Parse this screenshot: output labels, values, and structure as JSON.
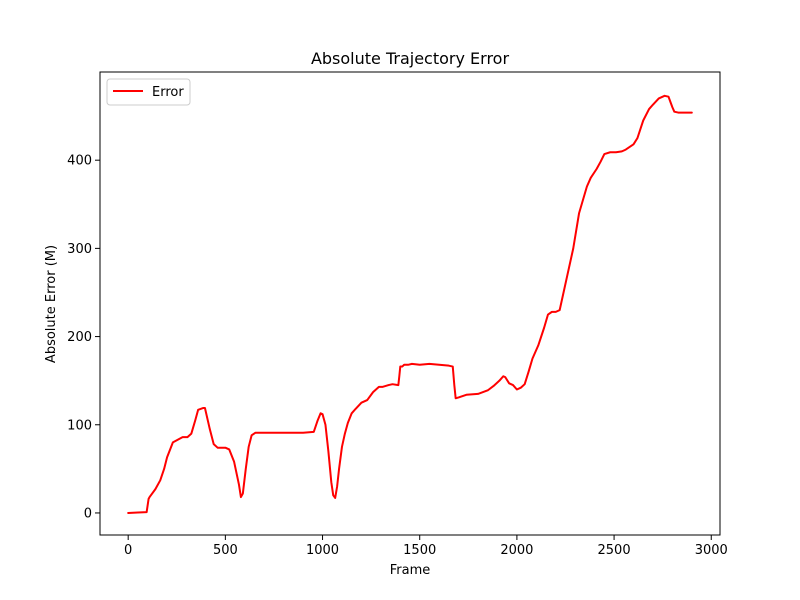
{
  "chart_data": {
    "type": "line",
    "title": "Absolute Trajectory Error",
    "xlabel": "Frame",
    "ylabel": "Absolute Error (M)",
    "xlim": [
      -145,
      3045
    ],
    "ylim": [
      -25,
      500
    ],
    "x_ticks": [
      0,
      500,
      1000,
      1500,
      2000,
      2500,
      3000
    ],
    "y_ticks": [
      0,
      100,
      200,
      300,
      400
    ],
    "x_tick_labels": [
      "0",
      "500",
      "1000",
      "1500",
      "2000",
      "2500",
      "3000"
    ],
    "y_tick_labels": [
      "0",
      "100",
      "200",
      "300",
      "400"
    ],
    "grid": false,
    "legend_position": "upper-left",
    "series": [
      {
        "name": "Error",
        "color": "#ff0000",
        "x": [
          0,
          50,
          95,
          105,
          110,
          120,
          140,
          165,
          185,
          200,
          230,
          280,
          305,
          325,
          345,
          360,
          385,
          395,
          420,
          440,
          460,
          500,
          520,
          545,
          570,
          580,
          590,
          605,
          620,
          635,
          655,
          700,
          800,
          900,
          955,
          975,
          990,
          1000,
          1015,
          1030,
          1045,
          1055,
          1065,
          1075,
          1085,
          1100,
          1115,
          1130,
          1150,
          1170,
          1200,
          1230,
          1260,
          1290,
          1310,
          1340,
          1360,
          1390,
          1395,
          1400,
          1410,
          1420,
          1440,
          1460,
          1500,
          1550,
          1600,
          1650,
          1670,
          1678,
          1685,
          1700,
          1740,
          1800,
          1850,
          1880,
          1910,
          1930,
          1940,
          1960,
          1980,
          2000,
          2020,
          2040,
          2060,
          2080,
          2110,
          2140,
          2160,
          2180,
          2200,
          2220,
          2240,
          2260,
          2290,
          2320,
          2340,
          2360,
          2380,
          2410,
          2430,
          2450,
          2480,
          2510,
          2540,
          2560,
          2600,
          2620,
          2650,
          2680,
          2700,
          2730,
          2760,
          2780,
          2790,
          2800,
          2810,
          2830,
          2850,
          2900
        ],
        "y": [
          0,
          0.5,
          1,
          16,
          18,
          21,
          27,
          37,
          50,
          63,
          80,
          86,
          86,
          90,
          105,
          117,
          119,
          119,
          95,
          78,
          74,
          74,
          72,
          58,
          32,
          18,
          22,
          50,
          75,
          88,
          91,
          91,
          91,
          91,
          92,
          105,
          113,
          112,
          100,
          70,
          35,
          20,
          17,
          30,
          50,
          75,
          90,
          102,
          113,
          118,
          125,
          128,
          137,
          143,
          143,
          145,
          146,
          145,
          155,
          166,
          166,
          168,
          168,
          169,
          168,
          169,
          168,
          167,
          166,
          145,
          130,
          131,
          134,
          135,
          139,
          144,
          150,
          155,
          154,
          147,
          145,
          140,
          142,
          146,
          160,
          175,
          190,
          210,
          225,
          228,
          228,
          230,
          250,
          270,
          300,
          340,
          355,
          370,
          380,
          390,
          398,
          407,
          409,
          409,
          410,
          412,
          418,
          425,
          445,
          458,
          463,
          470,
          473,
          472,
          466,
          460,
          455,
          454,
          454,
          454
        ]
      }
    ]
  }
}
